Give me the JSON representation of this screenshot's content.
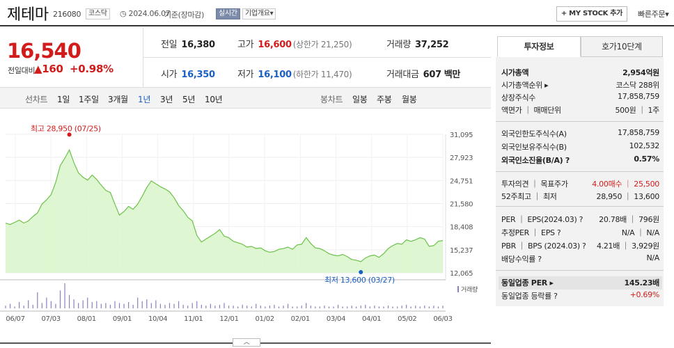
{
  "header": {
    "name": "제테마",
    "code": "216080",
    "market": "코스닥",
    "date": "2024.06.07",
    "basis": "기준(장마감)",
    "realtime": "실시간",
    "company": "기업개요",
    "company_arrow": "▾",
    "mystock": "+ MY STOCK 추가",
    "quick": "빠른주문",
    "quick_arrow": "▾"
  },
  "price": {
    "current": "16,540",
    "change_label": "전일대비",
    "change_arrow": "▲",
    "change": "160",
    "change_pct": "+0.98%"
  },
  "stats": {
    "prev_label": "전일",
    "prev": "16,380",
    "high_label": "고가",
    "high": "16,600",
    "upper": "(상한가 21,250)",
    "vol_label": "거래량",
    "vol": "37,252",
    "open_label": "시가",
    "open": "16,350",
    "low_label": "저가",
    "low": "16,100",
    "lower": "(하한가 11,470)",
    "amt_label": "거래대금",
    "amt": "607",
    "amt_unit": "백만"
  },
  "toolbar": {
    "line_label": "선차트",
    "periods": [
      "1일",
      "1주일",
      "3개월",
      "1년",
      "3년",
      "5년",
      "10년"
    ],
    "candle_label": "봉차트",
    "candles": [
      "일봉",
      "주봉",
      "월봉"
    ]
  },
  "chart_data": {
    "type": "area",
    "title": "",
    "xlabel": "",
    "ylabel": "",
    "x_ticks": [
      "06/07",
      "07/03",
      "08/01",
      "09/01",
      "10/04",
      "11/01",
      "12/01",
      "01/02",
      "02/01",
      "03/04",
      "04/01",
      "05/02",
      "06/03"
    ],
    "y_ticks": [
      "31,095",
      "27,923",
      "24,751",
      "21,580",
      "18,408",
      "15,237",
      "12,065"
    ],
    "ylim": [
      12065,
      31095
    ],
    "max_label": "최고 28,950 (07/25)",
    "min_label": "최저 13,600 (03/27)",
    "volume_label": "거래량",
    "values": [
      18900,
      18700,
      19000,
      19300,
      18900,
      19200,
      19800,
      20300,
      21500,
      22100,
      22800,
      24500,
      26800,
      27800,
      28950,
      27200,
      25800,
      25200,
      24800,
      25500,
      24900,
      24100,
      23400,
      23100,
      21500,
      20000,
      20500,
      21200,
      20800,
      21500,
      22600,
      23800,
      24700,
      24300,
      23900,
      23600,
      23200,
      22400,
      21300,
      20600,
      19700,
      19200,
      17200,
      16300,
      16700,
      17100,
      17500,
      18000,
      17100,
      16900,
      16400,
      16200,
      16000,
      15600,
      15700,
      15400,
      15500,
      15100,
      14900,
      15000,
      15300,
      15400,
      15600,
      15300,
      15900,
      16000,
      16900,
      16100,
      15500,
      15400,
      15100,
      14700,
      14500,
      14400,
      14600,
      14300,
      13900,
      13800,
      13600,
      14100,
      14400,
      14500,
      14200,
      14700,
      15400,
      15800,
      16100,
      16000,
      16600,
      16400,
      16600,
      16900,
      16700,
      15700,
      15800,
      16400,
      16500
    ],
    "volume": [
      3,
      5,
      2,
      7,
      3,
      9,
      4,
      18,
      6,
      12,
      8,
      5,
      20,
      28,
      15,
      10,
      6,
      9,
      12,
      7,
      8,
      5,
      6,
      4,
      8,
      6,
      5,
      7,
      4,
      12,
      8,
      10,
      6,
      9,
      5,
      4,
      6,
      5,
      8,
      4,
      3,
      6,
      8,
      4,
      3,
      5,
      3,
      4,
      6,
      3,
      3,
      2,
      4,
      3,
      2,
      5,
      3,
      2,
      3,
      4,
      2,
      3,
      5,
      2,
      2,
      3,
      6,
      3,
      2,
      2,
      3,
      2,
      2,
      4,
      2,
      2,
      3,
      2,
      3,
      4,
      2,
      3,
      2,
      2,
      3,
      2,
      2,
      3,
      4,
      2,
      3,
      2,
      3,
      2,
      3,
      2,
      3
    ]
  },
  "side": {
    "tab1": "투자정보",
    "tab2": "호가10단계",
    "rows": [
      {
        "l": "시가총액",
        "v": "2,954억원",
        "b": true
      },
      {
        "l": "시가총액순위 ▸",
        "v": "코스닥 288위"
      },
      {
        "l": "상장주식수",
        "v": "17,858,759"
      },
      {
        "l": "액면가 ｜ 매매단위",
        "v": "500원 ｜ 1주"
      },
      {
        "l": "외국인한도주식수(A)",
        "v": "17,858,759"
      },
      {
        "l": "외국인보유주식수(B)",
        "v": "102,532"
      },
      {
        "l": "외국인소진율(B/A) ?",
        "v": "0.57%",
        "b": true
      },
      {
        "l": "투자의견 ｜ 목표주가",
        "v": "4.00매수 ｜ 25,500",
        "red": true
      },
      {
        "l": "52주최고 ｜ 최저",
        "v": "28,950 ｜ 13,600"
      },
      {
        "l": "PER ｜ EPS(2024.03) ?",
        "v": "20.78배 ｜ 796원"
      },
      {
        "l": "추정PER ｜ EPS ?",
        "v": "N/A ｜ N/A"
      },
      {
        "l": "PBR ｜ BPS (2024.03) ?",
        "v": "4.21배 ｜ 3,929원"
      },
      {
        "l": "배당수익률 ?",
        "v": "N/A"
      },
      {
        "l": "동일업종 PER ▸",
        "v": "145.23배",
        "b": true
      },
      {
        "l": "동일업종 등락률 ?",
        "v": "+0.69%",
        "red": true
      }
    ]
  },
  "colors": {
    "up": "#d21b1b",
    "down": "#1a5fc4",
    "line": "#6cc24a",
    "fill": "#d8f5c9",
    "volume": "#8a7fc0"
  },
  "collapse": "︿"
}
